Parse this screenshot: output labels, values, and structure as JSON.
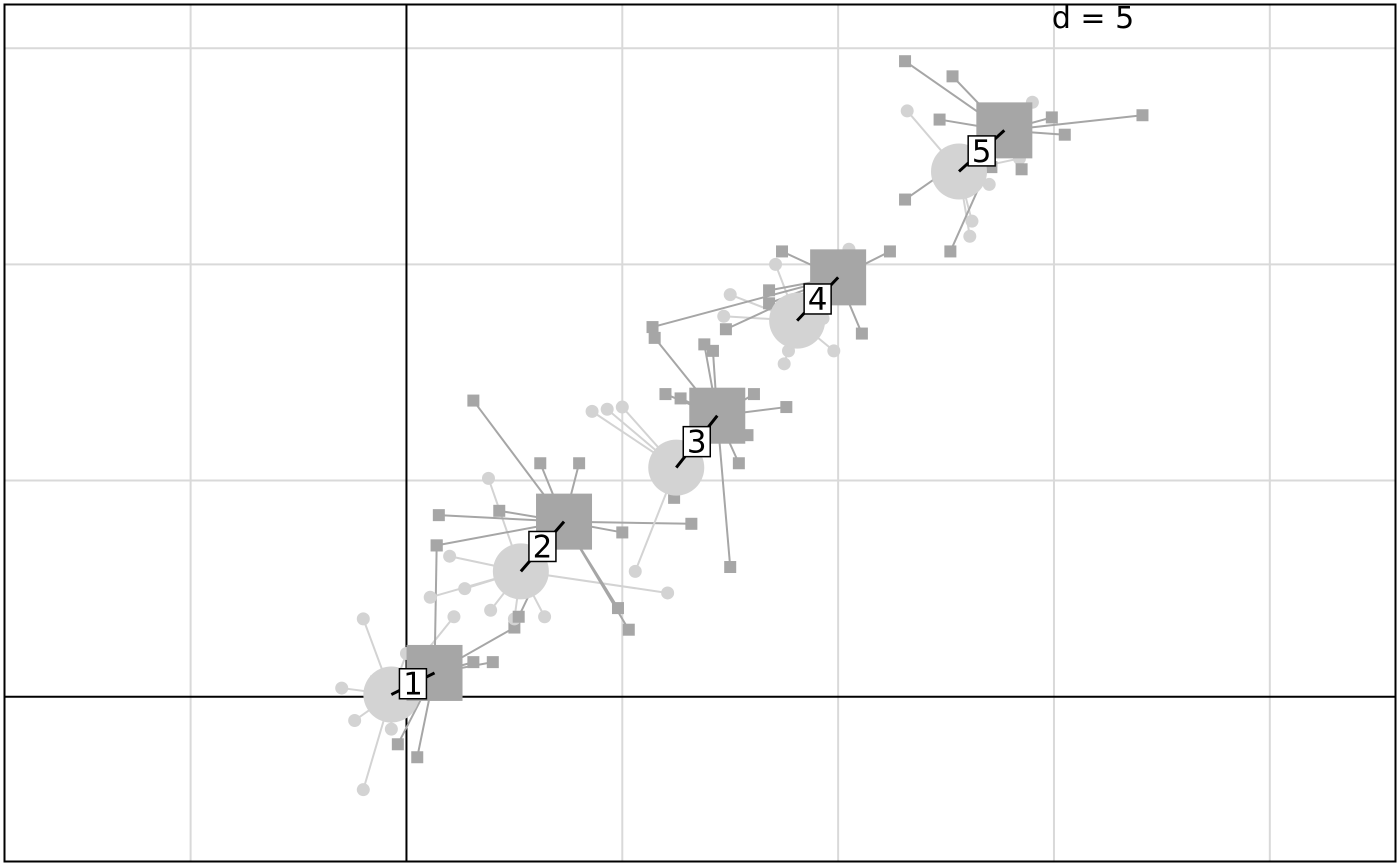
{
  "chart_data": {
    "type": "scatter",
    "d_label": "d = 5",
    "xlim": [
      -9.3,
      22.9
    ],
    "ylim": [
      -3.8,
      16.0
    ],
    "grid_step": 5,
    "grid": true,
    "colors": {
      "grid": "#d9d9d9",
      "axis": "#000000",
      "set_a": "#d3d3d3",
      "set_b": "#a6a6a6",
      "label_box": "#ffffff",
      "link": "#000000"
    },
    "groups": [
      {
        "label": "1",
        "center_a": [
          -0.35,
          0.05
        ],
        "center_b": [
          0.65,
          0.55
        ],
        "points_a": [
          [
            -1.0,
            1.8
          ],
          [
            -1.5,
            0.2
          ],
          [
            -1.2,
            -0.55
          ],
          [
            -0.35,
            -0.75
          ],
          [
            -1.0,
            -2.15
          ],
          [
            1.1,
            1.85
          ],
          [
            0.0,
            1.0
          ]
        ],
        "points_b": [
          [
            1.55,
            0.8
          ],
          [
            2.0,
            0.8
          ],
          [
            0.7,
            3.5
          ],
          [
            -0.7,
            0.35
          ],
          [
            -0.2,
            -1.1
          ],
          [
            0.25,
            -1.4
          ],
          [
            2.5,
            1.6
          ]
        ]
      },
      {
        "label": "2",
        "center_a": [
          2.65,
          2.9
        ],
        "center_b": [
          3.65,
          4.05
        ],
        "points_a": [
          [
            1.9,
            5.05
          ],
          [
            1.0,
            3.25
          ],
          [
            0.55,
            2.3
          ],
          [
            1.35,
            2.5
          ],
          [
            1.95,
            2.0
          ],
          [
            2.5,
            1.8
          ],
          [
            3.2,
            1.85
          ],
          [
            6.05,
            2.4
          ],
          [
            3.3,
            3.5
          ]
        ],
        "points_b": [
          [
            1.55,
            6.85
          ],
          [
            0.75,
            4.2
          ],
          [
            0.7,
            3.5
          ],
          [
            3.1,
            5.4
          ],
          [
            4.0,
            5.4
          ],
          [
            2.15,
            4.3
          ],
          [
            5.0,
            3.8
          ],
          [
            6.6,
            4.0
          ],
          [
            4.9,
            2.05
          ],
          [
            5.15,
            1.55
          ],
          [
            2.85,
            2.5
          ],
          [
            2.6,
            1.85
          ]
        ]
      },
      {
        "label": "3",
        "center_a": [
          6.25,
          5.3
        ],
        "center_b": [
          7.2,
          6.5
        ],
        "points_a": [
          [
            5.95,
            5.1
          ],
          [
            6.4,
            4.95
          ],
          [
            5.0,
            6.7
          ],
          [
            4.65,
            6.65
          ],
          [
            4.3,
            6.6
          ],
          [
            5.3,
            2.9
          ]
        ],
        "points_b": [
          [
            5.75,
            8.3
          ],
          [
            6.9,
            8.15
          ],
          [
            7.1,
            8.0
          ],
          [
            6.0,
            7.0
          ],
          [
            6.35,
            6.9
          ],
          [
            8.8,
            6.7
          ],
          [
            8.05,
            7.0
          ],
          [
            7.7,
            5.4
          ],
          [
            7.5,
            3.0
          ],
          [
            7.9,
            6.05
          ],
          [
            6.2,
            4.6
          ]
        ]
      },
      {
        "label": "4",
        "center_a": [
          9.05,
          8.7
        ],
        "center_b": [
          10.0,
          9.7
        ],
        "points_a": [
          [
            8.55,
            10.0
          ],
          [
            7.5,
            9.3
          ],
          [
            7.35,
            8.8
          ],
          [
            9.1,
            8.3
          ],
          [
            9.9,
            8.0
          ],
          [
            9.2,
            8.5
          ],
          [
            8.85,
            8.0
          ],
          [
            8.75,
            7.7
          ],
          [
            9.9,
            9.6
          ],
          [
            10.25,
            10.35
          ],
          [
            9.65,
            8.75
          ]
        ],
        "points_b": [
          [
            8.4,
            9.4
          ],
          [
            8.4,
            9.1
          ],
          [
            7.4,
            8.5
          ],
          [
            8.7,
            10.3
          ],
          [
            10.5,
            9.55
          ],
          [
            11.2,
            10.3
          ],
          [
            10.55,
            8.4
          ],
          [
            5.7,
            8.55
          ]
        ]
      },
      {
        "label": "5",
        "center_a": [
          12.8,
          12.15
        ],
        "center_b": [
          13.85,
          13.1
        ],
        "points_a": [
          [
            11.6,
            13.55
          ],
          [
            12.95,
            12.1
          ],
          [
            14.5,
            13.75
          ],
          [
            14.2,
            12.45
          ],
          [
            13.5,
            11.85
          ],
          [
            13.1,
            11.0
          ],
          [
            13.05,
            10.65
          ]
        ],
        "points_b": [
          [
            11.55,
            14.7
          ],
          [
            12.65,
            14.35
          ],
          [
            14.95,
            13.4
          ],
          [
            15.25,
            13.0
          ],
          [
            17.05,
            13.45
          ],
          [
            12.35,
            13.35
          ],
          [
            13.55,
            12.25
          ],
          [
            14.25,
            12.2
          ],
          [
            11.55,
            11.5
          ],
          [
            12.6,
            10.3
          ]
        ]
      }
    ]
  }
}
